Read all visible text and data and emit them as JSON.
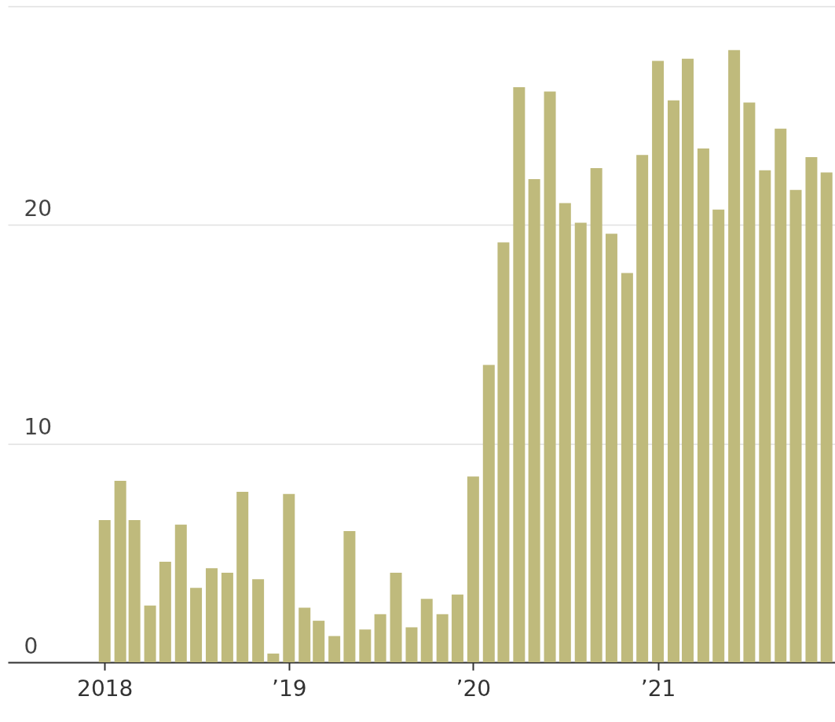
{
  "chart_data": {
    "type": "bar",
    "color": "#bfba7c",
    "grid": "y",
    "x": [
      "2018-01",
      "2018-02",
      "2018-03",
      "2018-04",
      "2018-05",
      "2018-06",
      "2018-07",
      "2018-08",
      "2018-09",
      "2018-10",
      "2018-11",
      "2018-12",
      "2019-01",
      "2019-02",
      "2019-03",
      "2019-04",
      "2019-05",
      "2019-06",
      "2019-07",
      "2019-08",
      "2019-09",
      "2019-10",
      "2019-11",
      "2019-12",
      "2020-01",
      "2020-02",
      "2020-03",
      "2020-04",
      "2020-05",
      "2020-06",
      "2020-07",
      "2020-08",
      "2020-09",
      "2020-10",
      "2020-11",
      "2020-12",
      "2021-01",
      "2021-02",
      "2021-03",
      "2021-04",
      "2021-05",
      "2021-06",
      "2021-07",
      "2021-08",
      "2021-09",
      "2021-10",
      "2021-11",
      "2021-12"
    ],
    "values": [
      6.5,
      8.3,
      6.5,
      2.6,
      4.6,
      6.3,
      3.4,
      4.3,
      4.1,
      7.8,
      3.8,
      0.4,
      7.7,
      2.5,
      1.9,
      1.2,
      6.0,
      1.5,
      2.2,
      4.1,
      1.6,
      2.9,
      2.2,
      3.1,
      8.5,
      13.6,
      19.2,
      26.3,
      22.1,
      26.1,
      21.0,
      20.1,
      22.6,
      19.6,
      17.8,
      23.2,
      27.5,
      25.7,
      27.6,
      23.5,
      20.7,
      28.0,
      25.6,
      22.5,
      24.4,
      21.6,
      23.1,
      22.4
    ],
    "xlim": [
      "2017-07-01",
      "2021-12-10"
    ],
    "xticks": [
      {
        "value": "2018-01",
        "label": "2018"
      },
      {
        "value": "2019-01",
        "label": "’19"
      },
      {
        "value": "2020-01",
        "label": "’20"
      },
      {
        "value": "2021-01",
        "label": "’21"
      }
    ],
    "ylim": [
      0,
      30
    ],
    "yticks": [
      0,
      10,
      20,
      {
        "value": 30,
        "label": null
      }
    ]
  }
}
